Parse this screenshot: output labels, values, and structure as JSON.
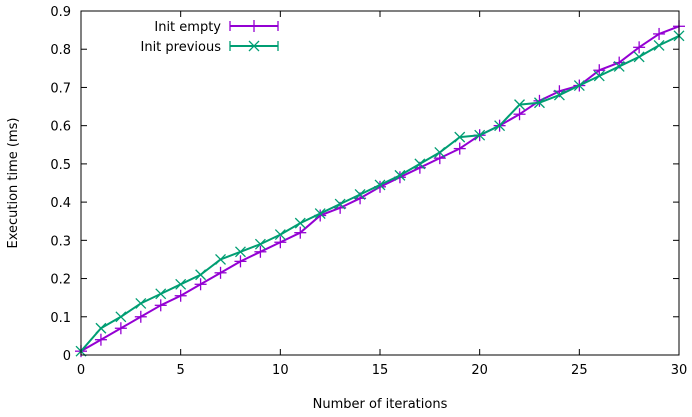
{
  "chart_data": {
    "type": "line",
    "title": "",
    "xlabel": "Number of iterations",
    "ylabel": "Execution time (ms)",
    "xlim": [
      0,
      30
    ],
    "ylim": [
      0,
      0.9
    ],
    "xticks": [
      "0",
      "5",
      "10",
      "15",
      "20",
      "25",
      "30"
    ],
    "yticks": [
      "0",
      "0.1",
      "0.2",
      "0.3",
      "0.4",
      "0.5",
      "0.6",
      "0.7",
      "0.8",
      "0.9"
    ],
    "grid": false,
    "legend_position": "top-left",
    "x": [
      0,
      1,
      2,
      3,
      4,
      5,
      6,
      7,
      8,
      9,
      10,
      11,
      12,
      13,
      14,
      15,
      16,
      17,
      18,
      19,
      20,
      21,
      22,
      23,
      24,
      25,
      26,
      27,
      28,
      29,
      30
    ],
    "series": [
      {
        "name": "Init empty",
        "color": "#9400d3",
        "marker": "plus",
        "values": [
          0.01,
          0.04,
          0.07,
          0.1,
          0.13,
          0.155,
          0.185,
          0.215,
          0.245,
          0.27,
          0.295,
          0.32,
          0.365,
          0.385,
          0.41,
          0.44,
          0.465,
          0.49,
          0.515,
          0.54,
          0.575,
          0.6,
          0.63,
          0.665,
          0.69,
          0.705,
          0.745,
          0.765,
          0.805,
          0.84,
          0.86
        ]
      },
      {
        "name": "Init previous",
        "color": "#009e73",
        "marker": "cross",
        "values": [
          0.01,
          0.07,
          0.1,
          0.135,
          0.16,
          0.185,
          0.21,
          0.25,
          0.27,
          0.29,
          0.315,
          0.345,
          0.37,
          0.395,
          0.42,
          0.445,
          0.47,
          0.5,
          0.53,
          0.57,
          0.575,
          0.6,
          0.655,
          0.66,
          0.68,
          0.705,
          0.73,
          0.755,
          0.78,
          0.81,
          0.835
        ]
      }
    ]
  }
}
